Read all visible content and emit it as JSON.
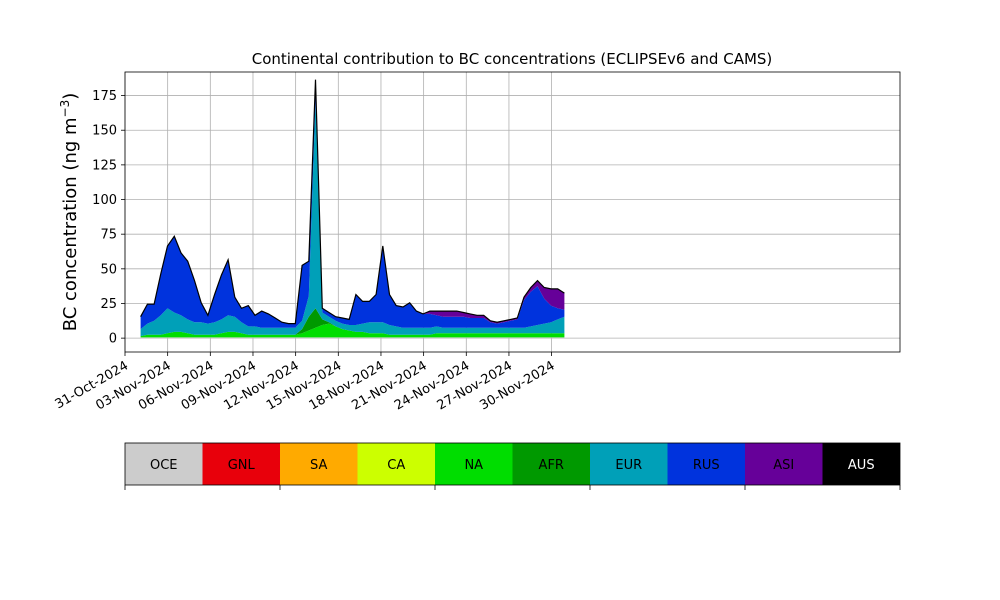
{
  "chart_data": {
    "type": "area",
    "title": "Continental contribution to BC concentrations (ECLIPSEv6 and CAMS)",
    "xlabel": "",
    "ylabel": "BC concentration (ng m",
    "ylabel_sup": "−3",
    "ylabel_close": ")",
    "ylim": [
      -10,
      192
    ],
    "yticks": [
      0,
      25,
      50,
      75,
      100,
      125,
      150,
      175
    ],
    "xlim": [
      0,
      54.5
    ],
    "x_unit": "days from 31-Oct-2024",
    "xticks": [
      {
        "x": 0,
        "label": "31-Oct-2024"
      },
      {
        "x": 3,
        "label": "03-Nov-2024"
      },
      {
        "x": 6,
        "label": "06-Nov-2024"
      },
      {
        "x": 9,
        "label": "09-Nov-2024"
      },
      {
        "x": 12,
        "label": "12-Nov-2024"
      },
      {
        "x": 15,
        "label": "15-Nov-2024"
      },
      {
        "x": 18,
        "label": "18-Nov-2024"
      },
      {
        "x": 21,
        "label": "21-Nov-2024"
      },
      {
        "x": 24,
        "label": "24-Nov-2024"
      },
      {
        "x": 27,
        "label": "27-Nov-2024"
      },
      {
        "x": 30,
        "label": "30-Nov-2024"
      }
    ],
    "grid": true,
    "stacked": true,
    "series": [
      {
        "name": "OCE",
        "color": "#cccccc",
        "values": [
          0.5,
          0.5,
          0.5,
          0.5,
          0.5,
          0.5,
          0.5,
          0.5,
          0.5,
          0.5,
          0.5,
          0.5,
          0.5,
          0.5,
          0.5,
          0.5,
          0.5,
          0.5,
          0.5,
          0.5,
          0.5,
          0.5,
          0.5,
          0.5,
          0.5,
          0.5,
          0.5,
          0.5,
          0.5,
          0.5,
          0.5,
          0.5,
          0.5,
          0.5,
          0.5,
          0.5,
          0.5,
          0.5,
          0.5,
          0.5,
          0.5,
          0.5,
          0.5,
          0.5,
          0.5,
          0.5,
          0.5,
          0.5,
          0.5,
          0.5,
          0.5,
          0.5,
          0.5,
          0.5,
          0.5,
          0.5,
          0.5,
          0.5,
          0.5,
          0.5,
          0.5,
          0.5,
          0.5,
          0.5
        ]
      },
      {
        "name": "GNL",
        "color": "#e8000b",
        "values": [
          0,
          0,
          0,
          0,
          0,
          0,
          0,
          0,
          0,
          0,
          0,
          0,
          0,
          0,
          0,
          0,
          0,
          0,
          0,
          0,
          0,
          0,
          0,
          0,
          0,
          0,
          0,
          0,
          0,
          0,
          0,
          0,
          0,
          0,
          0,
          0,
          0,
          0,
          0,
          0,
          0,
          0,
          0,
          0,
          0,
          0,
          0,
          0,
          0,
          0,
          0,
          0,
          0,
          0,
          0,
          0,
          0,
          0,
          0,
          0,
          0,
          0,
          0,
          0
        ]
      },
      {
        "name": "SA",
        "color": "#ffaa00",
        "values": [
          0,
          0,
          0,
          0,
          0,
          0,
          0,
          0,
          0,
          0,
          0,
          0,
          0,
          0,
          0,
          0,
          0,
          0,
          0,
          0,
          0,
          0,
          0,
          0,
          0,
          0,
          0,
          0,
          0,
          0,
          0,
          0,
          0,
          0,
          0,
          0,
          0,
          0,
          0,
          0,
          0,
          0,
          0,
          0,
          0,
          0,
          0,
          0,
          0,
          0,
          0,
          0,
          0,
          0,
          0,
          0,
          0,
          0,
          0,
          0,
          0,
          0,
          0,
          0
        ]
      },
      {
        "name": "CA",
        "color": "#ccff00",
        "values": [
          0,
          0,
          0,
          0,
          0,
          0,
          0,
          0,
          0,
          0,
          0,
          0,
          0,
          0,
          0,
          0,
          0,
          0,
          0,
          0,
          0,
          0,
          0,
          0,
          0,
          0,
          0,
          0,
          0,
          0,
          0,
          0,
          0,
          0,
          0,
          0,
          0,
          0,
          0,
          0,
          0,
          0,
          0,
          0,
          0,
          0,
          0,
          0,
          0,
          0,
          0,
          0,
          0,
          0,
          0,
          0,
          0,
          0,
          0,
          0,
          0,
          0,
          0,
          0
        ]
      },
      {
        "name": "NA",
        "color": "#00dd00",
        "values": [
          1,
          2,
          2,
          2,
          3,
          4,
          4,
          3,
          2,
          2,
          2,
          2,
          3,
          4,
          4,
          3,
          2,
          2,
          2,
          2,
          2,
          2,
          2,
          2,
          3,
          5,
          7,
          9,
          10,
          8,
          6,
          5,
          4,
          4,
          3,
          3,
          3,
          2,
          2,
          2,
          2,
          2,
          2,
          2,
          3,
          3,
          3,
          3,
          3,
          3,
          3,
          3,
          3,
          3,
          3,
          3,
          3,
          3,
          3,
          3,
          3,
          3,
          3,
          3
        ]
      },
      {
        "name": "AFR",
        "color": "#009900",
        "values": [
          0,
          0,
          0,
          0,
          0,
          0,
          0,
          0,
          0,
          0,
          0,
          0,
          0,
          0,
          0,
          0,
          0,
          0,
          0,
          0,
          0,
          0,
          0,
          0,
          3,
          10,
          14,
          4,
          1,
          0,
          0,
          0,
          0,
          0,
          0,
          0,
          0,
          0,
          0,
          0,
          0,
          0,
          0,
          0,
          0,
          0,
          0,
          0,
          0,
          0,
          0,
          0,
          0,
          0,
          0,
          0,
          0,
          0,
          0,
          0,
          0,
          0,
          0,
          0
        ]
      },
      {
        "name": "EUR",
        "color": "#00a0b8",
        "values": [
          5,
          8,
          10,
          14,
          18,
          14,
          12,
          10,
          9,
          9,
          8,
          9,
          10,
          12,
          11,
          8,
          6,
          6,
          5,
          5,
          5,
          5,
          5,
          5,
          6,
          15,
          150,
          5,
          4,
          4,
          4,
          4,
          5,
          6,
          8,
          8,
          8,
          7,
          6,
          5,
          5,
          5,
          5,
          5,
          5,
          4,
          4,
          4,
          4,
          4,
          4,
          4,
          4,
          4,
          4,
          4,
          4,
          4,
          5,
          6,
          7,
          8,
          10,
          12
        ]
      },
      {
        "name": "RUS",
        "color": "#0033dd",
        "values": [
          9,
          14,
          12,
          30,
          45,
          55,
          45,
          42,
          30,
          14,
          6,
          20,
          32,
          40,
          14,
          10,
          15,
          8,
          12,
          10,
          7,
          4,
          3,
          3,
          40,
          25,
          15,
          3,
          3,
          3,
          4,
          4,
          22,
          16,
          15,
          20,
          55,
          22,
          15,
          15,
          18,
          12,
          10,
          10,
          8,
          8,
          8,
          8,
          8,
          7,
          7,
          7,
          4,
          3,
          4,
          5,
          6,
          20,
          25,
          28,
          18,
          12,
          8,
          5
        ]
      },
      {
        "name": "ASI",
        "color": "#660099",
        "values": [
          0,
          0,
          0,
          0,
          0,
          0,
          0,
          0,
          0,
          0,
          0,
          0,
          0,
          0,
          0,
          0,
          0,
          0,
          0,
          0,
          0,
          0,
          0,
          0,
          0,
          0,
          0,
          0,
          0,
          0,
          0,
          0,
          0,
          0,
          0,
          0,
          0,
          0,
          0,
          0,
          0,
          0,
          0,
          2,
          3,
          4,
          4,
          4,
          3,
          3,
          2,
          2,
          1,
          1,
          1,
          1,
          1,
          2,
          3,
          4,
          8,
          12,
          14,
          12
        ]
      },
      {
        "name": "AUS",
        "color": "#000000",
        "values": [
          0,
          0,
          0,
          0,
          0,
          0,
          0,
          0,
          0,
          0,
          0,
          0,
          0,
          0,
          0,
          0,
          0,
          0,
          0,
          0,
          0,
          0,
          0,
          0,
          0,
          0,
          0,
          0,
          0,
          0,
          0,
          0,
          0,
          0,
          0,
          0,
          0,
          0,
          0,
          0,
          0,
          0,
          0,
          0,
          0,
          0,
          0,
          0,
          0,
          0,
          0,
          0,
          0,
          0,
          0,
          0,
          0,
          0,
          0,
          0,
          0,
          0,
          0,
          0
        ]
      }
    ]
  }
}
